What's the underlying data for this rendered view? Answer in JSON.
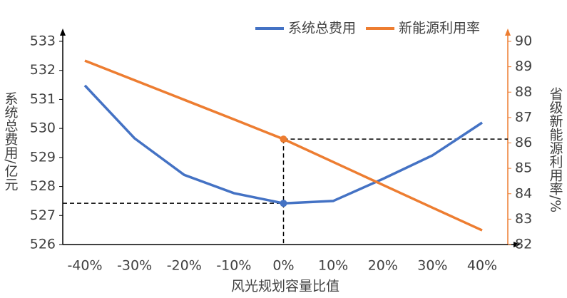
{
  "chart_data": {
    "type": "line",
    "xlabel": "风光规划容量比值",
    "ylabel": "系统总费用/亿元",
    "y2label": "省级新能源利用率/%",
    "categories": [
      "-40%",
      "-30%",
      "-20%",
      "-10%",
      "0%",
      "10%",
      "20%",
      "30%",
      "40%"
    ],
    "series": [
      {
        "name": "系统总费用",
        "color": "#4472c4",
        "axis": "y",
        "values": [
          531.48,
          529.66,
          528.4,
          527.77,
          527.42,
          527.5,
          528.26,
          529.07,
          530.2
        ]
      },
      {
        "name": "新能源利用率",
        "color": "#ed7d31",
        "axis": "y2",
        "values": [
          89.24,
          88.47,
          87.7,
          86.93,
          86.15,
          85.25,
          84.35,
          83.45,
          82.56
        ]
      }
    ],
    "ylim": [
      526,
      533
    ],
    "yticks": [
      526,
      527,
      528,
      529,
      530,
      531,
      532,
      533
    ],
    "y2lim": [
      82,
      90
    ],
    "y2ticks": [
      82,
      83,
      84,
      85,
      86,
      87,
      88,
      89,
      90
    ]
  }
}
